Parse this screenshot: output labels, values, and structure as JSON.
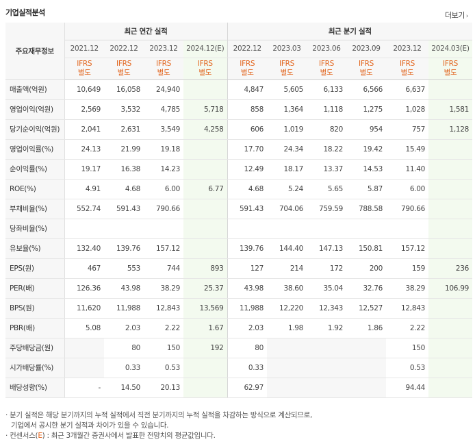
{
  "header": {
    "title": "기업실적분석",
    "more_label": "더보기",
    "more_arrow": "›"
  },
  "table": {
    "label_header": "주요재무정보",
    "group_annual": "최근 연간 실적",
    "group_quarter": "최근 분기 실적",
    "periods": [
      "2021.12",
      "2022.12",
      "2023.12",
      "2024.12(E)",
      "2022.12",
      "2023.03",
      "2023.06",
      "2023.09",
      "2023.12",
      "2024.03(E)"
    ],
    "ifrs_line1": "IFRS",
    "ifrs_line2": "별도",
    "rows": [
      {
        "label": "매출액(억원)",
        "values": [
          "10,649",
          "16,058",
          "24,940",
          "",
          "4,847",
          "5,605",
          "6,133",
          "6,566",
          "6,637",
          ""
        ]
      },
      {
        "label": "영업이익(억원)",
        "values": [
          "2,569",
          "3,532",
          "4,785",
          "5,718",
          "858",
          "1,364",
          "1,118",
          "1,275",
          "1,028",
          "1,581"
        ]
      },
      {
        "label": "당기순이익(억원)",
        "values": [
          "2,041",
          "2,631",
          "3,549",
          "4,258",
          "606",
          "1,019",
          "820",
          "954",
          "757",
          "1,128"
        ]
      },
      {
        "label": "영업이익률(%)",
        "values": [
          "24.13",
          "21.99",
          "19.18",
          "",
          "17.70",
          "24.34",
          "18.22",
          "19.42",
          "15.49",
          ""
        ]
      },
      {
        "label": "순이익률(%)",
        "values": [
          "19.17",
          "16.38",
          "14.23",
          "",
          "12.49",
          "18.17",
          "13.37",
          "14.53",
          "11.40",
          ""
        ]
      },
      {
        "label": "ROE(%)",
        "values": [
          "4.91",
          "4.68",
          "6.00",
          "6.77",
          "4.68",
          "5.24",
          "5.65",
          "5.87",
          "6.00",
          ""
        ]
      },
      {
        "label": "부채비율(%)",
        "values": [
          "552.74",
          "591.43",
          "790.66",
          "",
          "591.43",
          "704.06",
          "759.59",
          "788.58",
          "790.66",
          ""
        ]
      },
      {
        "label": "당좌비율(%)",
        "values": [
          "",
          "",
          "",
          "",
          "",
          "",
          "",
          "",
          "",
          ""
        ]
      },
      {
        "label": "유보율(%)",
        "values": [
          "132.40",
          "139.76",
          "157.12",
          "",
          "139.76",
          "144.40",
          "147.13",
          "150.81",
          "157.12",
          ""
        ]
      },
      {
        "label": "EPS(원)",
        "values": [
          "467",
          "553",
          "744",
          "893",
          "127",
          "214",
          "172",
          "200",
          "159",
          "236"
        ]
      },
      {
        "label": "PER(배)",
        "values": [
          "126.36",
          "43.98",
          "38.29",
          "25.37",
          "43.98",
          "38.60",
          "35.04",
          "32.76",
          "38.29",
          "106.99"
        ]
      },
      {
        "label": "BPS(원)",
        "values": [
          "11,620",
          "11,988",
          "12,843",
          "13,569",
          "11,988",
          "12,220",
          "12,343",
          "12,527",
          "12,843",
          ""
        ]
      },
      {
        "label": "PBR(배)",
        "values": [
          "5.08",
          "2.03",
          "2.22",
          "1.67",
          "2.03",
          "1.98",
          "1.92",
          "1.86",
          "2.22",
          ""
        ]
      },
      {
        "label": "주당배당금(원)",
        "values": [
          "",
          "80",
          "150",
          "192",
          "80",
          "",
          "",
          "",
          "150",
          ""
        ]
      },
      {
        "label": "시가배당률(%)",
        "values": [
          "",
          "0.33",
          "0.53",
          "",
          "0.33",
          "",
          "",
          "",
          "0.53",
          ""
        ]
      },
      {
        "label": "배당성향(%)",
        "values": [
          "-",
          "14.50",
          "20.13",
          "",
          "62.97",
          "",
          "",
          "",
          "94.44",
          ""
        ]
      }
    ]
  },
  "notes": {
    "line1": "· 분기 실적은 해당 분기까지의 누적 실적에서 직전 분기까지의 누적 실적을 차감하는 방식으로 계산되므로,",
    "line2": "기업에서 공시한 분기 실적과 차이가 있을 수 있습니다.",
    "line3_prefix": "· 컨센서스(",
    "line3_e": "E",
    "line3_suffix": ") : 최근 3개월간 증권사에서 발표한 전망치의 평균값입니다."
  },
  "colors": {
    "ifrs": "#e2651e",
    "estimate_bg": "#f3faef",
    "header_bg": "#f7f7f7"
  }
}
